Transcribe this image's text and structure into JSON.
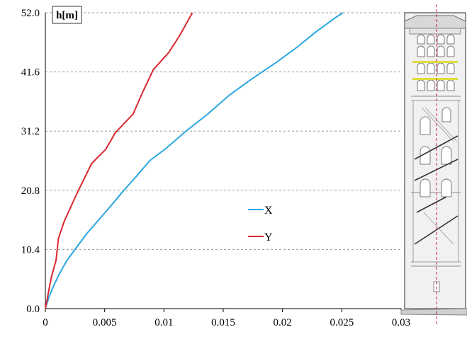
{
  "chart_data": {
    "type": "line",
    "title": "",
    "xlabel": "",
    "ylabel": "h[m]",
    "xlim": [
      0,
      0.03
    ],
    "ylim": [
      0,
      52.0
    ],
    "x_ticks": [
      0,
      0.005,
      0.01,
      0.015,
      0.02,
      0.025,
      0.03
    ],
    "x_tick_labels": [
      "0",
      "0.005",
      "0.01",
      "0.015",
      "0.02",
      "0.025",
      "0.03"
    ],
    "y_ticks": [
      0,
      10.4,
      20.8,
      31.2,
      41.6,
      52.0
    ],
    "y_tick_labels": [
      "0.0",
      "10.4",
      "20.8",
      "31.2",
      "41.6",
      "52.0"
    ],
    "grid": "horizontal dashed",
    "legend_position": "center",
    "series": [
      {
        "name": "X",
        "color": "#2aa7de",
        "points": [
          [
            0,
            0
          ],
          [
            0.0003,
            2
          ],
          [
            0.0007,
            4
          ],
          [
            0.0012,
            6.2
          ],
          [
            0.0018,
            8.4
          ],
          [
            0.0025,
            10.4
          ],
          [
            0.0035,
            13.2
          ],
          [
            0.0045,
            15.6
          ],
          [
            0.0055,
            18.0
          ],
          [
            0.0065,
            20.5
          ],
          [
            0.0077,
            23.3
          ],
          [
            0.0088,
            26.0
          ],
          [
            0.0102,
            28.2
          ],
          [
            0.0118,
            31.1
          ],
          [
            0.0137,
            34.2
          ],
          [
            0.0155,
            37.5
          ],
          [
            0.0175,
            40.5
          ],
          [
            0.0195,
            43.3
          ],
          [
            0.0212,
            45.9
          ],
          [
            0.0228,
            48.6
          ],
          [
            0.0245,
            51.2
          ],
          [
            0.0251,
            52.0
          ]
        ]
      },
      {
        "name": "Y",
        "color": "#d9282f",
        "points": [
          [
            0,
            0
          ],
          [
            0.0005,
            5.5
          ],
          [
            0.0009,
            8.5
          ],
          [
            0.0011,
            12.3
          ],
          [
            0.0016,
            15.4
          ],
          [
            0.0027,
            20.4
          ],
          [
            0.0039,
            25.5
          ],
          [
            0.0051,
            28.0
          ],
          [
            0.0059,
            30.9
          ],
          [
            0.0074,
            34.2
          ],
          [
            0.0082,
            38.0
          ],
          [
            0.0091,
            42.0
          ],
          [
            0.0104,
            45.0
          ],
          [
            0.0113,
            47.9
          ],
          [
            0.0124,
            52.0
          ]
        ]
      }
    ]
  },
  "illustration": {
    "subject": "building-elevation",
    "colors": {
      "wall": "#f1f1f1",
      "outline": "#6e6e6e",
      "axis_line": "#d11c3a",
      "band": "#dede3c",
      "window": "#ffffff",
      "stair": "#333333"
    }
  }
}
